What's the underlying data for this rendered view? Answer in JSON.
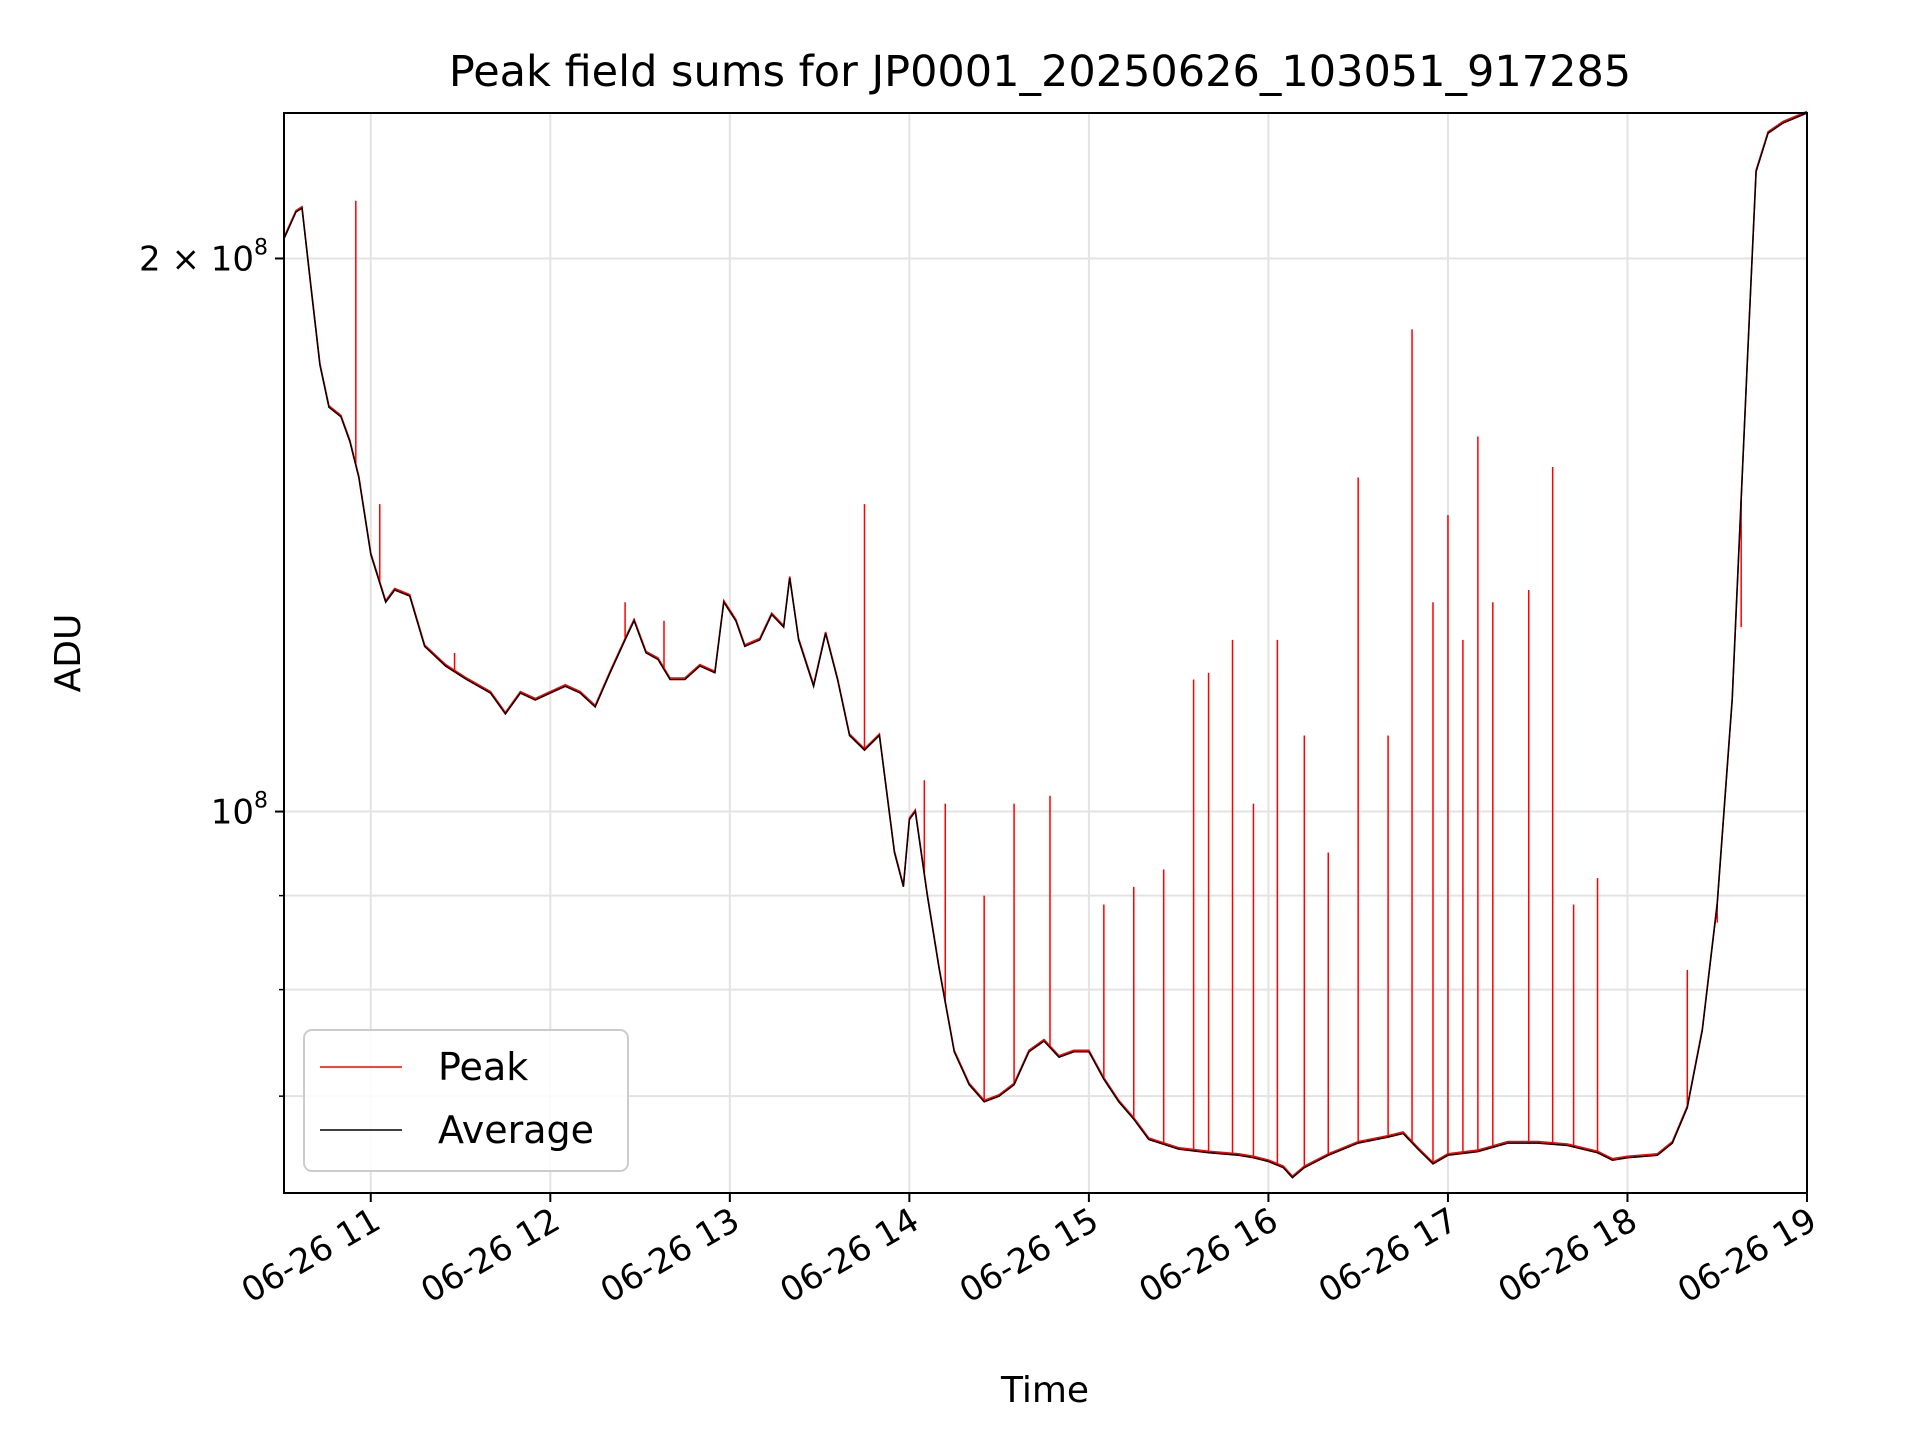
{
  "chart_data": {
    "type": "line",
    "title": "Peak field sums for JP0001_20250626_103051_917285",
    "xlabel": "Time",
    "ylabel": "ADU",
    "x_type": "datetime",
    "xlim": [
      "2025-06-26 10:31",
      "2025-06-26 19:00"
    ],
    "ylim": [
      62000000,
      240000000
    ],
    "y_scale": "log",
    "grid": true,
    "legend_position": "lower-left",
    "x_ticks": [
      {
        "value": "2025-06-26 11:00",
        "label": "06-26 11"
      },
      {
        "value": "2025-06-26 12:00",
        "label": "06-26 12"
      },
      {
        "value": "2025-06-26 13:00",
        "label": "06-26 13"
      },
      {
        "value": "2025-06-26 14:00",
        "label": "06-26 14"
      },
      {
        "value": "2025-06-26 15:00",
        "label": "06-26 15"
      },
      {
        "value": "2025-06-26 16:00",
        "label": "06-26 16"
      },
      {
        "value": "2025-06-26 17:00",
        "label": "06-26 17"
      },
      {
        "value": "2025-06-26 18:00",
        "label": "06-26 18"
      },
      {
        "value": "2025-06-26 19:00",
        "label": "06-26 19"
      }
    ],
    "y_ticks": [
      {
        "value": 200000000,
        "mantissa": "2",
        "times": "×",
        "base": "10",
        "exp": "8"
      },
      {
        "value": 100000000,
        "mantissa": "",
        "times": "",
        "base": "10",
        "exp": "8"
      }
    ],
    "y_minor_ticks": [
      60000000,
      70000000,
      80000000,
      90000000
    ],
    "series": [
      {
        "name": "Average",
        "color": "#000000",
        "points": [
          [
            "2025-06-26 10:31",
            205000000
          ],
          [
            "2025-06-26 10:35",
            212000000
          ],
          [
            "2025-06-26 10:37",
            213000000
          ],
          [
            "2025-06-26 10:40",
            193000000
          ],
          [
            "2025-06-26 10:43",
            175000000
          ],
          [
            "2025-06-26 10:46",
            166000000
          ],
          [
            "2025-06-26 10:50",
            164000000
          ],
          [
            "2025-06-26 10:53",
            159000000
          ],
          [
            "2025-06-26 10:56",
            152000000
          ],
          [
            "2025-06-26 11:00",
            138000000
          ],
          [
            "2025-06-26 11:05",
            130000000
          ],
          [
            "2025-06-26 11:08",
            132000000
          ],
          [
            "2025-06-26 11:13",
            131000000
          ],
          [
            "2025-06-26 11:18",
            123000000
          ],
          [
            "2025-06-26 11:25",
            120000000
          ],
          [
            "2025-06-26 11:32",
            118000000
          ],
          [
            "2025-06-26 11:40",
            116000000
          ],
          [
            "2025-06-26 11:45",
            113000000
          ],
          [
            "2025-06-26 11:50",
            116000000
          ],
          [
            "2025-06-26 11:55",
            115000000
          ],
          [
            "2025-06-26 12:00",
            116000000
          ],
          [
            "2025-06-26 12:05",
            117000000
          ],
          [
            "2025-06-26 12:10",
            116000000
          ],
          [
            "2025-06-26 12:15",
            114000000
          ],
          [
            "2025-06-26 12:20",
            119000000
          ],
          [
            "2025-06-26 12:25",
            124000000
          ],
          [
            "2025-06-26 12:28",
            127000000
          ],
          [
            "2025-06-26 12:32",
            122000000
          ],
          [
            "2025-06-26 12:36",
            121000000
          ],
          [
            "2025-06-26 12:40",
            118000000
          ],
          [
            "2025-06-26 12:45",
            118000000
          ],
          [
            "2025-06-26 12:50",
            120000000
          ],
          [
            "2025-06-26 12:55",
            119000000
          ],
          [
            "2025-06-26 12:58",
            130000000
          ],
          [
            "2025-06-26 13:02",
            127000000
          ],
          [
            "2025-06-26 13:05",
            123000000
          ],
          [
            "2025-06-26 13:10",
            124000000
          ],
          [
            "2025-06-26 13:14",
            128000000
          ],
          [
            "2025-06-26 13:18",
            126000000
          ],
          [
            "2025-06-26 13:20",
            134000000
          ],
          [
            "2025-06-26 13:23",
            124000000
          ],
          [
            "2025-06-26 13:28",
            117000000
          ],
          [
            "2025-06-26 13:32",
            125000000
          ],
          [
            "2025-06-26 13:36",
            118000000
          ],
          [
            "2025-06-26 13:40",
            110000000
          ],
          [
            "2025-06-26 13:45",
            108000000
          ],
          [
            "2025-06-26 13:50",
            110000000
          ],
          [
            "2025-06-26 13:55",
            95000000
          ],
          [
            "2025-06-26 13:58",
            91000000
          ],
          [
            "2025-06-26 14:00",
            99000000
          ],
          [
            "2025-06-26 14:02",
            100000000
          ],
          [
            "2025-06-26 14:06",
            90000000
          ],
          [
            "2025-06-26 14:10",
            82000000
          ],
          [
            "2025-06-26 14:15",
            74000000
          ],
          [
            "2025-06-26 14:20",
            71000000
          ],
          [
            "2025-06-26 14:25",
            69500000
          ],
          [
            "2025-06-26 14:30",
            70000000
          ],
          [
            "2025-06-26 14:35",
            71000000
          ],
          [
            "2025-06-26 14:40",
            74000000
          ],
          [
            "2025-06-26 14:45",
            75000000
          ],
          [
            "2025-06-26 14:50",
            73500000
          ],
          [
            "2025-06-26 14:55",
            74000000
          ],
          [
            "2025-06-26 15:00",
            74000000
          ],
          [
            "2025-06-26 15:05",
            71500000
          ],
          [
            "2025-06-26 15:10",
            69500000
          ],
          [
            "2025-06-26 15:15",
            68000000
          ],
          [
            "2025-06-26 15:20",
            66300000
          ],
          [
            "2025-06-26 15:30",
            65500000
          ],
          [
            "2025-06-26 15:40",
            65200000
          ],
          [
            "2025-06-26 15:50",
            65000000
          ],
          [
            "2025-06-26 15:55",
            64800000
          ],
          [
            "2025-06-26 16:00",
            64500000
          ],
          [
            "2025-06-26 16:05",
            64000000
          ],
          [
            "2025-06-26 16:08",
            63200000
          ],
          [
            "2025-06-26 16:12",
            64000000
          ],
          [
            "2025-06-26 16:20",
            65000000
          ],
          [
            "2025-06-26 16:30",
            66000000
          ],
          [
            "2025-06-26 16:40",
            66500000
          ],
          [
            "2025-06-26 16:45",
            66800000
          ],
          [
            "2025-06-26 16:50",
            65500000
          ],
          [
            "2025-06-26 16:55",
            64300000
          ],
          [
            "2025-06-26 17:00",
            65000000
          ],
          [
            "2025-06-26 17:10",
            65300000
          ],
          [
            "2025-06-26 17:20",
            66000000
          ],
          [
            "2025-06-26 17:30",
            66000000
          ],
          [
            "2025-06-26 17:40",
            65800000
          ],
          [
            "2025-06-26 17:50",
            65200000
          ],
          [
            "2025-06-26 17:55",
            64600000
          ],
          [
            "2025-06-26 18:00",
            64800000
          ],
          [
            "2025-06-26 18:10",
            65000000
          ],
          [
            "2025-06-26 18:15",
            66000000
          ],
          [
            "2025-06-26 18:20",
            69000000
          ],
          [
            "2025-06-26 18:25",
            76000000
          ],
          [
            "2025-06-26 18:30",
            89000000
          ],
          [
            "2025-06-26 18:35",
            115000000
          ],
          [
            "2025-06-26 18:40",
            175000000
          ],
          [
            "2025-06-26 18:43",
            223000000
          ],
          [
            "2025-06-26 18:47",
            234000000
          ],
          [
            "2025-06-26 18:52",
            237000000
          ],
          [
            "2025-06-26 19:00",
            240000000
          ]
        ]
      },
      {
        "name": "Peak",
        "color": "#ff0000",
        "spikes": [
          [
            "2025-06-26 10:55",
            215000000
          ],
          [
            "2025-06-26 11:03",
            147000000
          ],
          [
            "2025-06-26 11:28",
            122000000
          ],
          [
            "2025-06-26 12:25",
            130000000
          ],
          [
            "2025-06-26 12:38",
            127000000
          ],
          [
            "2025-06-26 13:45",
            147000000
          ],
          [
            "2025-06-26 14:05",
            104000000
          ],
          [
            "2025-06-26 14:12",
            101000000
          ],
          [
            "2025-06-26 14:25",
            90000000
          ],
          [
            "2025-06-26 14:35",
            101000000
          ],
          [
            "2025-06-26 14:47",
            102000000
          ],
          [
            "2025-06-26 15:05",
            89000000
          ],
          [
            "2025-06-26 15:15",
            91000000
          ],
          [
            "2025-06-26 15:25",
            93000000
          ],
          [
            "2025-06-26 15:35",
            118000000
          ],
          [
            "2025-06-26 15:40",
            119000000
          ],
          [
            "2025-06-26 15:48",
            124000000
          ],
          [
            "2025-06-26 15:55",
            101000000
          ],
          [
            "2025-06-26 16:03",
            124000000
          ],
          [
            "2025-06-26 16:12",
            110000000
          ],
          [
            "2025-06-26 16:20",
            95000000
          ],
          [
            "2025-06-26 16:30",
            152000000
          ],
          [
            "2025-06-26 16:40",
            110000000
          ],
          [
            "2025-06-26 16:48",
            183000000
          ],
          [
            "2025-06-26 16:55",
            130000000
          ],
          [
            "2025-06-26 17:00",
            145000000
          ],
          [
            "2025-06-26 17:05",
            124000000
          ],
          [
            "2025-06-26 17:10",
            160000000
          ],
          [
            "2025-06-26 17:15",
            130000000
          ],
          [
            "2025-06-26 17:27",
            132000000
          ],
          [
            "2025-06-26 17:35",
            154000000
          ],
          [
            "2025-06-26 17:42",
            89000000
          ],
          [
            "2025-06-26 17:50",
            92000000
          ],
          [
            "2025-06-26 18:20",
            82000000
          ],
          [
            "2025-06-26 18:30",
            87000000
          ],
          [
            "2025-06-26 18:38",
            126000000
          ]
        ]
      }
    ]
  }
}
